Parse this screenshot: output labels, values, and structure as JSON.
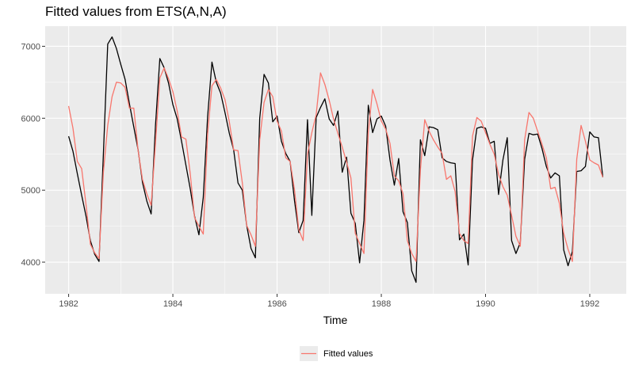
{
  "chart_data": {
    "type": "line",
    "title": "Fitted values from ETS(A,N,A)",
    "xlabel": "Time",
    "ylabel": "",
    "xlim": [
      1981.55,
      1992.7
    ],
    "ylim": [
      3560,
      7280
    ],
    "x_ticks": [
      1982,
      1984,
      1986,
      1988,
      1990,
      1992
    ],
    "y_ticks": [
      4000,
      5000,
      6000,
      7000
    ],
    "grid": true,
    "legend_position": "bottom",
    "legend": [
      "Fitted values"
    ],
    "start": 1982.0,
    "frequency": 12,
    "series": [
      {
        "role": "observed",
        "color": "#000000",
        "values": [
          5750,
          5540,
          5230,
          4930,
          4640,
          4300,
          4110,
          4010,
          5500,
          7030,
          7130,
          6970,
          6750,
          6540,
          6200,
          5880,
          5560,
          5110,
          4850,
          4670,
          5900,
          6830,
          6700,
          6490,
          6190,
          5990,
          5680,
          5350,
          5020,
          4640,
          4380,
          4900,
          6020,
          6780,
          6500,
          6350,
          6080,
          5790,
          5560,
          5100,
          5000,
          4510,
          4190,
          4060,
          6000,
          6610,
          6490,
          5950,
          6030,
          5680,
          5510,
          5400,
          4860,
          4410,
          4580,
          5980,
          4650,
          6010,
          6150,
          6270,
          5990,
          5900,
          6100,
          5250,
          5460,
          4680,
          4540,
          3990,
          4580,
          6180,
          5800,
          5990,
          6030,
          5890,
          5420,
          5070,
          5440,
          4700,
          4550,
          3880,
          3720,
          5700,
          5480,
          5880,
          5870,
          5840,
          5450,
          5400,
          5380,
          5370,
          4310,
          4390,
          3960,
          5420,
          5860,
          5880,
          5860,
          5650,
          5680,
          4940,
          5420,
          5730,
          4300,
          4120,
          4270,
          5430,
          5790,
          5770,
          5780,
          5580,
          5330,
          5170,
          5240,
          5200,
          4170,
          3950,
          4150,
          5260,
          5270,
          5330,
          5810,
          5740,
          5730,
          5180
        ]
      },
      {
        "name": "Fitted values",
        "role": "fitted",
        "color": "#F8766D",
        "values": [
          6170,
          5860,
          5400,
          5300,
          4800,
          4250,
          4130,
          4050,
          5250,
          5900,
          6300,
          6500,
          6490,
          6430,
          6140,
          6140,
          5550,
          5150,
          4950,
          4790,
          5650,
          6560,
          6700,
          6550,
          6370,
          6100,
          5740,
          5710,
          5230,
          4620,
          4500,
          4390,
          5780,
          6450,
          6540,
          6420,
          6260,
          5950,
          5560,
          5550,
          5100,
          4510,
          4380,
          4220,
          5700,
          6220,
          6400,
          6300,
          5960,
          5820,
          5450,
          5400,
          5010,
          4450,
          4300,
          5500,
          5800,
          6050,
          6630,
          6470,
          6250,
          5990,
          5790,
          5600,
          5390,
          5170,
          4400,
          4260,
          4120,
          5800,
          6400,
          6200,
          5960,
          5850,
          5650,
          5200,
          5130,
          4950,
          4300,
          4120,
          4010,
          5280,
          5980,
          5820,
          5700,
          5600,
          5510,
          5150,
          5200,
          4980,
          4400,
          4300,
          4260,
          5750,
          6010,
          5960,
          5800,
          5640,
          5500,
          5220,
          5050,
          4930,
          4650,
          4360,
          4220,
          5700,
          6080,
          6000,
          5820,
          5640,
          5450,
          5020,
          5040,
          4820,
          4400,
          4180,
          4010,
          5430,
          5900,
          5680,
          5420,
          5380,
          5350,
          5180
        ]
      }
    ]
  }
}
